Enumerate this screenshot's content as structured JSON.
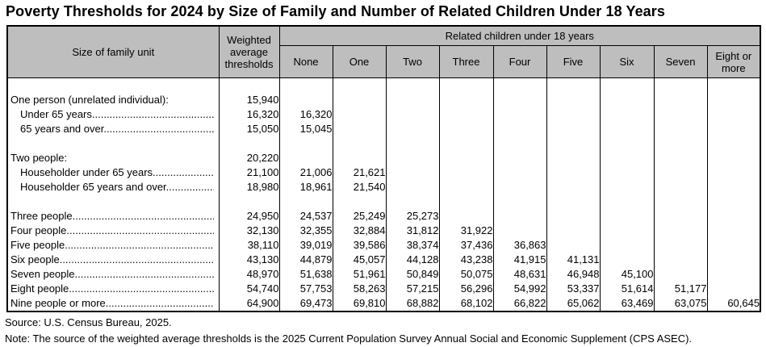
{
  "title": "Poverty Thresholds for 2024 by Size of Family and Number of Related Children Under 18 Years",
  "colors": {
    "header_bg": "#BEBEBE",
    "border": "#000000",
    "text": "#000000",
    "background": "#FFFFFF"
  },
  "table": {
    "corner_header": "Size of family unit",
    "weighted_header": "Weighted average thresholds",
    "children_span_header": "Related children under 18 years",
    "child_columns": [
      "None",
      "One",
      "Two",
      "Three",
      "Four",
      "Five",
      "Six",
      "Seven",
      "Eight or more"
    ],
    "leader_dots": "................................................................................",
    "rows": [
      {
        "type": "blank"
      },
      {
        "type": "data",
        "indent": 0,
        "leader": false,
        "label": "One person (unrelated individual):",
        "weighted": "15,940",
        "children": [
          "",
          "",
          "",
          "",
          "",
          "",
          "",
          "",
          ""
        ]
      },
      {
        "type": "data",
        "indent": 1,
        "leader": true,
        "label": "Under 65 years",
        "weighted": "16,320",
        "children": [
          "16,320",
          "",
          "",
          "",
          "",
          "",
          "",
          "",
          ""
        ]
      },
      {
        "type": "data",
        "indent": 1,
        "leader": true,
        "label": "65 years and over",
        "weighted": "15,050",
        "children": [
          "15,045",
          "",
          "",
          "",
          "",
          "",
          "",
          "",
          ""
        ]
      },
      {
        "type": "blank"
      },
      {
        "type": "data",
        "indent": 0,
        "leader": false,
        "label": "Two people:",
        "weighted": "20,220",
        "children": [
          "",
          "",
          "",
          "",
          "",
          "",
          "",
          "",
          ""
        ]
      },
      {
        "type": "data",
        "indent": 1,
        "leader": true,
        "label": "Householder under 65 years",
        "weighted": "21,100",
        "children": [
          "21,006",
          "21,621",
          "",
          "",
          "",
          "",
          "",
          "",
          ""
        ]
      },
      {
        "type": "data",
        "indent": 1,
        "leader": true,
        "label": "Householder 65 years and over",
        "weighted": "18,980",
        "children": [
          "18,961",
          "21,540",
          "",
          "",
          "",
          "",
          "",
          "",
          ""
        ]
      },
      {
        "type": "blank"
      },
      {
        "type": "data",
        "indent": 0,
        "leader": true,
        "label": "Three people",
        "weighted": "24,950",
        "children": [
          "24,537",
          "25,249",
          "25,273",
          "",
          "",
          "",
          "",
          "",
          ""
        ]
      },
      {
        "type": "data",
        "indent": 0,
        "leader": true,
        "label": "Four people",
        "weighted": "32,130",
        "children": [
          "32,355",
          "32,884",
          "31,812",
          "31,922",
          "",
          "",
          "",
          "",
          ""
        ]
      },
      {
        "type": "data",
        "indent": 0,
        "leader": true,
        "label": "Five people",
        "weighted": "38,110",
        "children": [
          "39,019",
          "39,586",
          "38,374",
          "37,436",
          "36,863",
          "",
          "",
          "",
          ""
        ]
      },
      {
        "type": "data",
        "indent": 0,
        "leader": true,
        "label": "Six people",
        "weighted": "43,130",
        "children": [
          "44,879",
          "45,057",
          "44,128",
          "43,238",
          "41,915",
          "41,131",
          "",
          "",
          ""
        ]
      },
      {
        "type": "data",
        "indent": 0,
        "leader": true,
        "label": "Seven people",
        "weighted": "48,970",
        "children": [
          "51,638",
          "51,961",
          "50,849",
          "50,075",
          "48,631",
          "46,948",
          "45,100",
          "",
          ""
        ]
      },
      {
        "type": "data",
        "indent": 0,
        "leader": true,
        "label": "Eight people",
        "weighted": "54,740",
        "children": [
          "57,753",
          "58,263",
          "57,215",
          "56,296",
          "54,992",
          "53,337",
          "51,614",
          "51,177",
          ""
        ]
      },
      {
        "type": "data",
        "indent": 0,
        "leader": true,
        "label": "Nine people or more",
        "weighted": "64,900",
        "children": [
          "69,473",
          "69,810",
          "68,882",
          "68,102",
          "66,822",
          "65,062",
          "63,469",
          "63,075",
          "60,645"
        ]
      }
    ]
  },
  "footer": {
    "source": "Source: U.S. Census Bureau, 2025.",
    "note": "Note: The source of the weighted average thresholds is the 2025 Current Population Survey Annual Social and Economic Supplement (CPS ASEC)."
  }
}
